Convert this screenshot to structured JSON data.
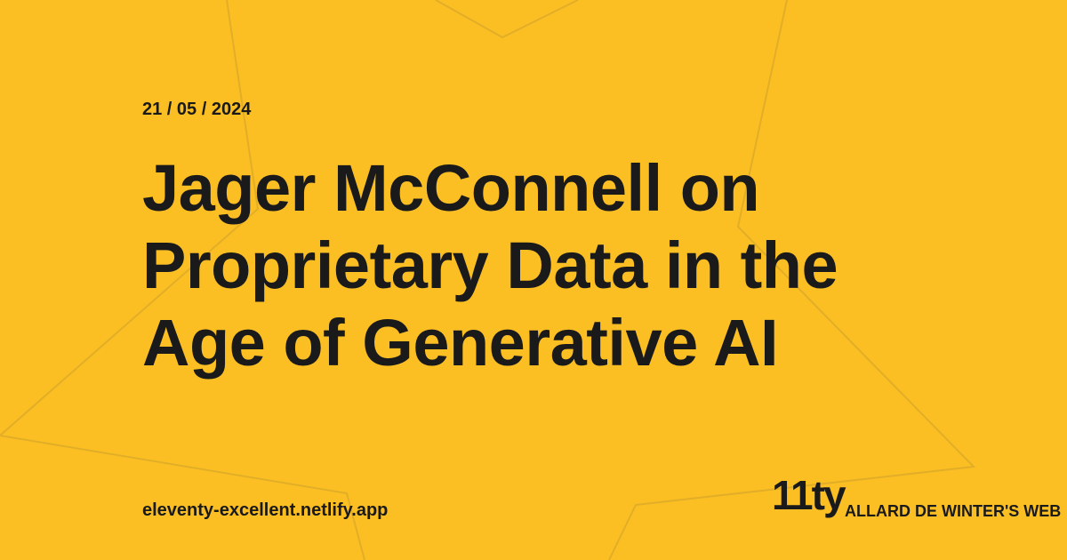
{
  "date": "21 / 05 / 2024",
  "title_lines": [
    "Jager McConnell on",
    "Proprietary Data in the",
    "Age of Generative AI"
  ],
  "url": "eleventy-excellent.netlify.app",
  "logo": "11ty",
  "site_name": "ALLARD DE WINTER'S WEB"
}
